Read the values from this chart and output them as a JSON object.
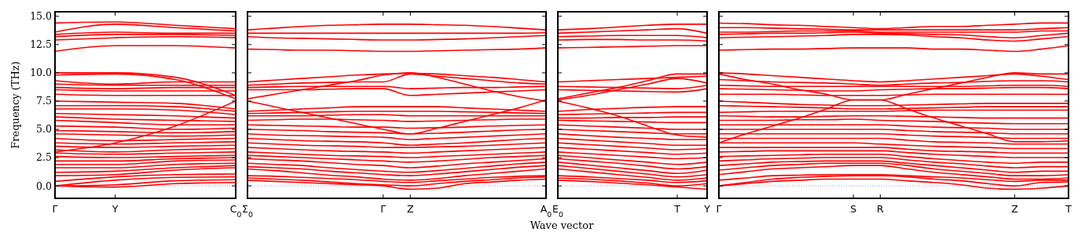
{
  "chart_data": [
    {
      "type": "line",
      "ylabel": "Frequency (THz)",
      "color": "#ff0000",
      "ylim": [
        -1.1,
        15.4
      ],
      "yticks": [
        {
          "value": 0,
          "label": "0.0"
        },
        {
          "value": 2.5,
          "label": "2.5"
        },
        {
          "value": 5,
          "label": "5.0"
        },
        {
          "value": 7.5,
          "label": "7.5"
        },
        {
          "value": 10,
          "label": "10.0"
        },
        {
          "value": 12.5,
          "label": "12.5"
        },
        {
          "value": 15,
          "label": "15.0"
        }
      ],
      "categories": [
        "Γ",
        "Y",
        null,
        "C$_{0}$"
      ],
      "ref_lines": [
        {
          "axis": "y",
          "value": 0,
          "color": "#8080ff",
          "line_style": "dotted"
        }
      ],
      "series": [
        {
          "values": [
            14.4,
            14.5,
            14.2,
            13.9
          ]
        },
        {
          "values": [
            13.6,
            14.3,
            14.0,
            13.7
          ]
        },
        {
          "values": [
            13.4,
            13.6,
            13.5,
            13.5
          ]
        },
        {
          "values": [
            13.2,
            13.4,
            13.4,
            13.3
          ]
        },
        {
          "values": [
            12.9,
            13.1,
            13.2,
            13.1
          ]
        },
        {
          "values": [
            11.9,
            12.4,
            12.4,
            12.2
          ]
        },
        {
          "values": [
            10.0,
            10.0,
            9.6,
            8.0
          ]
        },
        {
          "values": [
            9.8,
            9.9,
            9.4,
            7.7
          ]
        },
        {
          "values": [
            9.3,
            9.0,
            9.2,
            9.2
          ]
        },
        {
          "values": [
            9.0,
            8.9,
            8.9,
            8.9
          ]
        },
        {
          "values": [
            8.7,
            8.6,
            8.7,
            8.7
          ]
        },
        {
          "values": [
            8.5,
            8.4,
            8.4,
            8.4
          ]
        },
        {
          "values": [
            8.1,
            8.0,
            8.0,
            8.0
          ]
        },
        {
          "values": [
            7.5,
            7.4,
            7.3,
            6.8
          ]
        },
        {
          "values": [
            7.1,
            7.1,
            7.0,
            6.6
          ]
        },
        {
          "values": [
            6.8,
            6.8,
            6.7,
            6.3
          ]
        },
        {
          "values": [
            6.4,
            6.3,
            6.2,
            6.0
          ]
        },
        {
          "values": [
            6.1,
            5.9,
            5.8,
            5.7
          ]
        },
        {
          "values": [
            5.8,
            5.6,
            5.4,
            5.4
          ]
        },
        {
          "values": [
            5.3,
            5.2,
            5.0,
            5.1
          ]
        },
        {
          "values": [
            4.9,
            4.8,
            4.7,
            4.8
          ]
        },
        {
          "values": [
            4.6,
            4.5,
            4.4,
            4.5
          ]
        },
        {
          "values": [
            4.2,
            4.0,
            4.1,
            4.2
          ]
        },
        {
          "values": [
            3.8,
            3.7,
            3.8,
            3.9
          ]
        },
        {
          "values": [
            3.5,
            3.4,
            3.5,
            3.6
          ]
        },
        {
          "values": [
            3.2,
            3.0,
            3.2,
            3.3
          ]
        },
        {
          "values": [
            2.9,
            2.8,
            2.9,
            3.0
          ]
        },
        {
          "values": [
            2.6,
            2.5,
            2.6,
            2.7
          ]
        },
        {
          "values": [
            2.2,
            2.2,
            2.4,
            2.5
          ]
        },
        {
          "values": [
            1.9,
            1.9,
            2.2,
            2.3
          ]
        },
        {
          "values": [
            1.6,
            1.6,
            1.9,
            2.0
          ]
        },
        {
          "values": [
            1.2,
            1.3,
            1.6,
            1.8
          ]
        },
        {
          "values": [
            0.9,
            1.0,
            1.4,
            1.6
          ]
        },
        {
          "values": [
            0.4,
            0.8,
            1.0,
            1.05
          ]
        },
        {
          "values": [
            0.0,
            0.5,
            0.75,
            0.8
          ]
        },
        {
          "values": [
            0.0,
            0.1,
            0.45,
            0.55
          ]
        },
        {
          "values": [
            0.0,
            -0.1,
            0.2,
            0.3
          ]
        },
        {
          "values": [
            3.0,
            3.8,
            5.3,
            7.5
          ]
        }
      ]
    },
    {
      "type": "line",
      "color": "#ff0000",
      "tick_labels": "x",
      "ylim": [
        -1.1,
        15.4
      ],
      "yticks": [
        {
          "value": 0,
          "label": null
        },
        {
          "value": 2.5,
          "label": null
        },
        {
          "value": 5,
          "label": null
        },
        {
          "value": 7.5,
          "label": null
        },
        {
          "value": 10,
          "label": null
        },
        {
          "value": 12.5,
          "label": null
        },
        {
          "value": 15,
          "label": null
        }
      ],
      "categories": [
        "Σ$_{0}$",
        null,
        null,
        null,
        null,
        "Γ",
        "Z",
        null,
        null,
        null,
        null,
        "A$_{0}$"
      ],
      "ref_lines": [
        {
          "axis": "y",
          "value": 0,
          "color": "#8080ff",
          "line_style": "dotted"
        }
      ],
      "series": [
        {
          "values": [
            13.8,
            13.95,
            14.1,
            14.2,
            14.25,
            14.3,
            14.3,
            14.25,
            14.2,
            14.1,
            13.95,
            13.8
          ]
        },
        {
          "values": [
            13.5,
            13.5,
            13.5,
            13.5,
            13.5,
            13.5,
            13.5,
            13.5,
            13.5,
            13.5,
            13.5,
            13.55
          ]
        },
        {
          "values": [
            13.2,
            13.1,
            13.05,
            13.0,
            12.95,
            12.9,
            12.9,
            12.95,
            13.0,
            13.1,
            13.2,
            13.3
          ]
        },
        {
          "values": [
            12.1,
            12.05,
            12.0,
            12.0,
            11.95,
            11.9,
            11.9,
            11.95,
            12.0,
            12.05,
            12.1,
            12.2
          ]
        },
        {
          "values": [
            9.2,
            9.35,
            9.5,
            9.65,
            9.8,
            9.9,
            9.95,
            9.9,
            9.75,
            9.6,
            9.4,
            9.2
          ]
        },
        {
          "values": [
            8.9,
            9.0,
            9.1,
            9.15,
            9.2,
            9.2,
            9.9,
            9.7,
            9.5,
            9.3,
            9.1,
            9.0
          ]
        },
        {
          "values": [
            8.7,
            8.75,
            8.8,
            8.8,
            8.8,
            8.8,
            8.6,
            8.65,
            8.7,
            8.7,
            8.75,
            8.8
          ]
        },
        {
          "values": [
            8.5,
            8.5,
            8.5,
            8.55,
            8.6,
            8.6,
            8.0,
            8.1,
            8.2,
            8.3,
            8.4,
            8.5
          ]
        },
        {
          "values": [
            7.7,
            8.1,
            8.5,
            8.9,
            9.3,
            9.8,
            10.0,
            9.6,
            9.0,
            8.4,
            7.9,
            7.5
          ]
        },
        {
          "values": [
            7.5,
            7.0,
            6.5,
            6.0,
            5.5,
            5.0,
            4.6,
            5.1,
            5.7,
            6.3,
            6.9,
            7.6
          ]
        },
        {
          "values": [
            6.6,
            6.7,
            6.8,
            6.9,
            7.0,
            7.0,
            7.0,
            7.0,
            6.9,
            6.8,
            6.7,
            6.6
          ]
        },
        {
          "values": [
            6.4,
            6.45,
            6.5,
            6.55,
            6.6,
            6.6,
            6.6,
            6.6,
            6.55,
            6.5,
            6.45,
            6.4
          ]
        },
        {
          "values": [
            6.2,
            6.2,
            6.2,
            6.25,
            6.3,
            6.3,
            6.2,
            6.2,
            6.2,
            6.2,
            6.2,
            6.2
          ]
        },
        {
          "values": [
            5.8,
            5.85,
            5.9,
            5.9,
            5.85,
            5.8,
            5.7,
            5.75,
            5.8,
            5.85,
            5.9,
            5.9
          ]
        },
        {
          "values": [
            5.4,
            5.35,
            5.3,
            5.25,
            5.2,
            5.2,
            5.1,
            5.15,
            5.2,
            5.3,
            5.35,
            5.4
          ]
        },
        {
          "values": [
            5.0,
            4.95,
            4.9,
            4.8,
            4.75,
            4.7,
            4.6,
            4.65,
            4.75,
            4.85,
            4.95,
            5.0
          ]
        },
        {
          "values": [
            4.6,
            4.5,
            4.45,
            4.4,
            4.35,
            4.3,
            4.1,
            4.2,
            4.3,
            4.4,
            4.5,
            4.6
          ]
        },
        {
          "values": [
            4.2,
            4.1,
            4.0,
            3.95,
            3.9,
            3.8,
            3.6,
            3.7,
            3.8,
            3.95,
            4.1,
            4.2
          ]
        },
        {
          "values": [
            3.8,
            3.7,
            3.6,
            3.55,
            3.5,
            3.4,
            3.4,
            3.45,
            3.5,
            3.6,
            3.7,
            3.8
          ]
        },
        {
          "values": [
            3.4,
            3.3,
            3.2,
            3.1,
            3.05,
            3.0,
            2.9,
            3.0,
            3.1,
            3.2,
            3.3,
            3.4
          ]
        },
        {
          "values": [
            3.0,
            2.9,
            2.8,
            2.7,
            2.65,
            2.6,
            2.5,
            2.6,
            2.7,
            2.8,
            2.9,
            3.0
          ]
        },
        {
          "values": [
            2.7,
            2.6,
            2.5,
            2.4,
            2.3,
            2.2,
            2.1,
            2.2,
            2.35,
            2.5,
            2.6,
            2.7
          ]
        },
        {
          "values": [
            2.4,
            2.3,
            2.2,
            2.05,
            1.9,
            1.8,
            1.6,
            1.75,
            1.95,
            2.1,
            2.25,
            2.4
          ]
        },
        {
          "values": [
            2.0,
            1.9,
            1.8,
            1.6,
            1.45,
            1.3,
            1.2,
            1.35,
            1.55,
            1.75,
            1.95,
            2.1
          ]
        },
        {
          "values": [
            1.7,
            1.6,
            1.5,
            1.3,
            1.15,
            1.0,
            0.9,
            1.05,
            1.25,
            1.45,
            1.65,
            1.8
          ]
        },
        {
          "values": [
            1.5,
            1.35,
            1.15,
            0.95,
            0.8,
            0.6,
            0.5,
            0.65,
            0.9,
            1.1,
            1.3,
            1.5
          ]
        },
        {
          "values": [
            0.9,
            0.85,
            0.75,
            0.65,
            0.55,
            0.4,
            0.3,
            0.45,
            0.6,
            0.75,
            0.85,
            0.9
          ]
        },
        {
          "values": [
            0.7,
            0.6,
            0.5,
            0.35,
            0.2,
            0.1,
            0.0,
            0.2,
            0.4,
            0.55,
            0.7,
            0.8
          ]
        },
        {
          "values": [
            0.5,
            0.4,
            0.3,
            0.2,
            0.1,
            0.0,
            -0.3,
            -0.2,
            0.2,
            0.35,
            0.5,
            0.6
          ]
        }
      ]
    },
    {
      "type": "line",
      "xlabel": "Wave vector",
      "color": "#ff0000",
      "tick_labels": "x",
      "ylim": [
        -1.1,
        15.4
      ],
      "yticks": [
        {
          "value": 0,
          "label": null
        },
        {
          "value": 2.5,
          "label": null
        },
        {
          "value": 5,
          "label": null
        },
        {
          "value": 7.5,
          "label": null
        },
        {
          "value": 10,
          "label": null
        },
        {
          "value": 12.5,
          "label": null
        },
        {
          "value": 15,
          "label": null
        }
      ],
      "categories": [
        "E$_{0}$",
        null,
        null,
        null,
        "T",
        "Y"
      ],
      "ref_lines": [
        {
          "axis": "y",
          "value": 0,
          "color": "#8080ff",
          "line_style": "dotted"
        }
      ],
      "series": [
        {
          "values": [
            13.8,
            13.9,
            14.05,
            14.2,
            14.3,
            14.3
          ]
        },
        {
          "values": [
            13.5,
            13.6,
            13.7,
            13.8,
            13.9,
            13.5
          ]
        },
        {
          "values": [
            13.2,
            13.25,
            13.3,
            13.3,
            13.3,
            13.1
          ]
        },
        {
          "values": [
            12.9,
            12.95,
            12.95,
            12.9,
            12.9,
            12.8
          ]
        },
        {
          "values": [
            12.2,
            12.25,
            12.3,
            12.35,
            12.4,
            12.4
          ]
        },
        {
          "values": [
            7.7,
            8.2,
            8.7,
            9.3,
            9.9,
            9.9
          ]
        },
        {
          "values": [
            7.6,
            8.0,
            8.5,
            9.0,
            9.5,
            9.1
          ]
        },
        {
          "values": [
            9.2,
            9.3,
            9.4,
            9.5,
            9.6,
            9.7
          ]
        },
        {
          "values": [
            8.8,
            8.75,
            8.7,
            8.65,
            8.6,
            8.9
          ]
        },
        {
          "values": [
            8.5,
            8.45,
            8.4,
            8.35,
            8.3,
            8.6
          ]
        },
        {
          "values": [
            7.5,
            6.9,
            6.2,
            5.3,
            4.5,
            4.3
          ]
        },
        {
          "values": [
            6.6,
            6.75,
            6.85,
            6.95,
            7.0,
            7.0
          ]
        },
        {
          "values": [
            6.3,
            6.35,
            6.4,
            6.45,
            6.5,
            6.5
          ]
        },
        {
          "values": [
            6.0,
            6.0,
            6.05,
            6.05,
            6.1,
            6.1
          ]
        },
        {
          "values": [
            5.8,
            5.75,
            5.7,
            5.65,
            5.6,
            5.6
          ]
        },
        {
          "values": [
            5.4,
            5.3,
            5.2,
            5.1,
            5.0,
            5.0
          ]
        },
        {
          "values": [
            5.0,
            4.9,
            4.8,
            4.7,
            4.6,
            4.6
          ]
        },
        {
          "values": [
            4.6,
            4.45,
            4.3,
            4.2,
            4.1,
            4.1
          ]
        },
        {
          "values": [
            4.2,
            4.05,
            3.9,
            3.75,
            3.6,
            3.6
          ]
        },
        {
          "values": [
            3.8,
            3.65,
            3.5,
            3.35,
            3.2,
            3.3
          ]
        },
        {
          "values": [
            3.4,
            3.25,
            3.1,
            2.95,
            2.8,
            2.9
          ]
        },
        {
          "values": [
            3.0,
            2.85,
            2.7,
            2.55,
            2.4,
            2.5
          ]
        },
        {
          "values": [
            2.7,
            2.5,
            2.3,
            2.1,
            1.9,
            2.1
          ]
        },
        {
          "values": [
            2.4,
            2.2,
            2.0,
            1.75,
            1.5,
            1.7
          ]
        },
        {
          "values": [
            2.1,
            1.85,
            1.6,
            1.35,
            1.1,
            1.4
          ]
        },
        {
          "values": [
            1.8,
            1.55,
            1.3,
            1.05,
            0.8,
            1.0
          ]
        },
        {
          "values": [
            1.5,
            1.25,
            1.0,
            0.75,
            0.5,
            0.7
          ]
        },
        {
          "values": [
            0.9,
            0.8,
            0.65,
            0.5,
            0.3,
            0.45
          ]
        },
        {
          "values": [
            0.7,
            0.6,
            0.45,
            0.25,
            0.0,
            0.2
          ]
        },
        {
          "values": [
            0.5,
            0.4,
            0.25,
            0.1,
            -0.1,
            -0.3
          ]
        }
      ]
    },
    {
      "type": "line",
      "color": "#ff0000",
      "tick_labels": "x",
      "ylim": [
        -1.1,
        15.4
      ],
      "yticks": [
        {
          "value": 0,
          "label": null
        },
        {
          "value": 2.5,
          "label": null
        },
        {
          "value": 5,
          "label": null
        },
        {
          "value": 7.5,
          "label": null
        },
        {
          "value": 10,
          "label": null
        },
        {
          "value": 12.5,
          "label": null
        },
        {
          "value": 15,
          "label": null
        }
      ],
      "categories": [
        "Γ",
        null,
        null,
        null,
        null,
        "S",
        "R",
        null,
        null,
        null,
        null,
        "Z",
        null,
        "T"
      ],
      "ref_lines": [
        {
          "axis": "y",
          "value": 0,
          "color": "#8080ff",
          "line_style": "dotted"
        }
      ],
      "series": [
        {
          "values": [
            14.4,
            14.35,
            14.25,
            14.2,
            14.1,
            14.0,
            13.9,
            14.0,
            14.1,
            14.1,
            14.2,
            14.3,
            14.4,
            14.4
          ]
        },
        {
          "values": [
            14.0,
            14.0,
            13.95,
            13.9,
            13.85,
            13.8,
            13.8,
            13.8,
            13.8,
            13.8,
            13.8,
            13.8,
            13.9,
            14.0
          ]
        },
        {
          "values": [
            13.6,
            13.6,
            13.65,
            13.7,
            13.7,
            13.7,
            13.6,
            13.6,
            13.6,
            13.6,
            13.6,
            13.6,
            13.7,
            13.7
          ]
        },
        {
          "values": [
            13.4,
            13.45,
            13.5,
            13.5,
            13.55,
            13.6,
            13.5,
            13.45,
            13.4,
            13.35,
            13.2,
            13.1,
            13.3,
            13.5
          ]
        },
        {
          "values": [
            13.1,
            13.15,
            13.2,
            13.25,
            13.3,
            13.4,
            13.4,
            13.35,
            13.2,
            13.1,
            12.9,
            12.8,
            13.0,
            13.2
          ]
        },
        {
          "values": [
            12.0,
            12.05,
            12.1,
            12.1,
            12.15,
            12.2,
            12.2,
            12.2,
            12.1,
            12.1,
            12.0,
            11.9,
            12.1,
            12.4
          ]
        },
        {
          "values": [
            10.0,
            9.9,
            9.75,
            9.6,
            9.45,
            9.3,
            9.2,
            9.3,
            9.45,
            9.6,
            9.75,
            9.9,
            9.7,
            9.4
          ]
        },
        {
          "values": [
            9.9,
            9.4,
            9.0,
            8.5,
            8.1,
            7.6,
            7.6,
            8.1,
            8.6,
            9.1,
            9.6,
            10.0,
            9.9,
            9.9
          ]
        },
        {
          "values": [
            9.4,
            9.3,
            9.2,
            9.15,
            9.1,
            9.0,
            8.9,
            9.0,
            9.1,
            9.15,
            9.25,
            9.3,
            9.3,
            9.2
          ]
        },
        {
          "values": [
            8.9,
            8.85,
            8.8,
            8.8,
            8.8,
            8.8,
            8.8,
            8.8,
            8.8,
            8.8,
            8.85,
            8.9,
            8.9,
            8.8
          ]
        },
        {
          "values": [
            8.6,
            8.55,
            8.5,
            8.45,
            8.4,
            8.4,
            8.5,
            8.55,
            8.6,
            8.6,
            8.65,
            8.7,
            8.7,
            8.6
          ]
        },
        {
          "values": [
            8.1,
            8.1,
            8.1,
            8.05,
            8.0,
            8.0,
            8.0,
            8.05,
            8.1,
            8.1,
            8.1,
            8.1,
            8.1,
            8.1
          ]
        },
        {
          "values": [
            7.5,
            7.4,
            7.3,
            7.2,
            7.15,
            7.1,
            7.1,
            7.15,
            7.2,
            7.25,
            7.3,
            7.3,
            7.3,
            7.3
          ]
        },
        {
          "values": [
            7.1,
            7.05,
            7.0,
            6.95,
            6.9,
            6.8,
            6.8,
            6.85,
            6.9,
            6.95,
            7.0,
            7.0,
            7.0,
            7.0
          ]
        },
        {
          "values": [
            6.5,
            6.55,
            6.6,
            6.6,
            6.6,
            6.6,
            6.6,
            6.65,
            6.7,
            6.7,
            6.7,
            6.7,
            6.7,
            6.7
          ]
        },
        {
          "values": [
            3.8,
            4.6,
            5.3,
            6.0,
            6.8,
            7.6,
            7.6,
            6.8,
            6.0,
            5.3,
            4.6,
            3.9,
            3.9,
            4.0
          ]
        },
        {
          "values": [
            6.2,
            6.15,
            6.1,
            6.1,
            6.15,
            6.2,
            6.2,
            6.15,
            6.1,
            6.05,
            6.0,
            6.0,
            6.0,
            6.0
          ]
        },
        {
          "values": [
            5.8,
            5.8,
            5.8,
            5.85,
            5.85,
            5.9,
            5.8,
            5.75,
            5.7,
            5.6,
            5.55,
            5.5,
            5.5,
            5.5
          ]
        },
        {
          "values": [
            5.4,
            5.4,
            5.4,
            5.4,
            5.4,
            5.4,
            5.4,
            5.3,
            5.2,
            5.15,
            5.1,
            5.0,
            5.0,
            5.0
          ]
        },
        {
          "values": [
            5.0,
            5.0,
            5.0,
            5.0,
            5.0,
            5.0,
            5.0,
            4.9,
            4.8,
            4.75,
            4.7,
            4.6,
            4.6,
            4.6
          ]
        },
        {
          "values": [
            4.6,
            4.6,
            4.6,
            4.6,
            4.6,
            4.6,
            4.6,
            4.5,
            4.4,
            4.35,
            4.3,
            4.2,
            4.2,
            4.2
          ]
        },
        {
          "values": [
            4.2,
            4.2,
            4.2,
            4.2,
            4.2,
            4.2,
            4.2,
            4.05,
            3.9,
            3.85,
            3.8,
            3.7,
            3.7,
            3.7
          ]
        },
        {
          "values": [
            3.8,
            3.8,
            3.8,
            3.8,
            3.8,
            3.8,
            3.7,
            3.6,
            3.5,
            3.45,
            3.4,
            3.3,
            3.3,
            3.3
          ]
        },
        {
          "values": [
            3.4,
            3.4,
            3.4,
            3.4,
            3.4,
            3.4,
            3.4,
            3.25,
            3.1,
            3.05,
            3.0,
            2.9,
            2.9,
            2.9
          ]
        },
        {
          "values": [
            3.0,
            3.05,
            3.1,
            3.1,
            3.1,
            3.1,
            3.1,
            2.95,
            2.8,
            2.7,
            2.6,
            2.5,
            2.5,
            2.5
          ]
        },
        {
          "values": [
            2.6,
            2.65,
            2.7,
            2.75,
            2.8,
            2.8,
            2.8,
            2.6,
            2.4,
            2.25,
            2.1,
            2.0,
            2.1,
            2.1
          ]
        },
        {
          "values": [
            2.2,
            2.3,
            2.4,
            2.45,
            2.5,
            2.5,
            2.5,
            2.3,
            2.1,
            1.95,
            1.75,
            1.6,
            1.7,
            1.7
          ]
        },
        {
          "values": [
            1.8,
            1.95,
            2.1,
            2.15,
            2.2,
            2.2,
            2.2,
            2.0,
            1.8,
            1.6,
            1.4,
            1.2,
            1.3,
            1.3
          ]
        },
        {
          "values": [
            1.4,
            1.6,
            1.8,
            1.9,
            2.0,
            2.0,
            2.0,
            1.8,
            1.5,
            1.3,
            1.1,
            0.9,
            0.9,
            1.0
          ]
        },
        {
          "values": [
            1.0,
            1.25,
            1.5,
            1.6,
            1.7,
            1.8,
            1.8,
            1.5,
            1.2,
            1.0,
            0.8,
            0.6,
            0.6,
            0.7
          ]
        },
        {
          "values": [
            0.5,
            0.7,
            0.9,
            0.95,
            1.0,
            1.0,
            1.0,
            0.9,
            0.8,
            0.7,
            0.55,
            0.4,
            0.5,
            0.5
          ]
        },
        {
          "values": [
            0.0,
            0.3,
            0.6,
            0.75,
            0.85,
            0.9,
            0.9,
            0.8,
            0.6,
            0.45,
            0.2,
            0.0,
            0.3,
            0.35
          ]
        },
        {
          "values": [
            0.0,
            0.2,
            0.4,
            0.5,
            0.6,
            0.6,
            0.6,
            0.45,
            0.3,
            0.1,
            -0.2,
            -0.3,
            -0.2,
            0.0
          ]
        }
      ]
    }
  ]
}
